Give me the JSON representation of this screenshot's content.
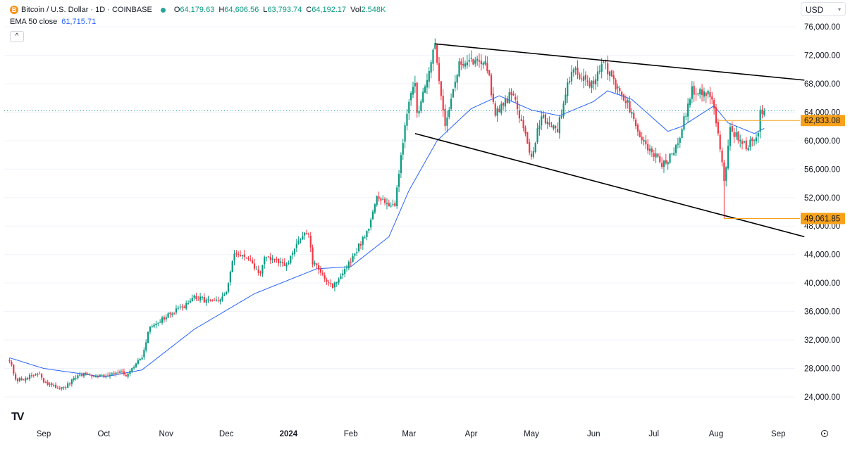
{
  "header": {
    "symbol_title": "Bitcoin / U.S. Dollar · 1D · COINBASE",
    "logo_letter": "B",
    "ohlc": [
      {
        "key": "O",
        "value": "64,179.63"
      },
      {
        "key": "H",
        "value": "64,606.56"
      },
      {
        "key": "L",
        "value": "63,793.74"
      },
      {
        "key": "C",
        "value": "64,192.17"
      },
      {
        "key": "Vol",
        "value": "2.548K"
      }
    ],
    "indicator_label": "EMA 50 close",
    "indicator_value": "61,715.71",
    "collapse_glyph": "^"
  },
  "currency_selector": {
    "value": "USD"
  },
  "logo": {
    "text": "TV"
  },
  "colors": {
    "up": "#089981",
    "down": "#f23645",
    "ema": "#2962ff",
    "tag": "#f7a21b",
    "trendline": "#000000"
  },
  "chart_data": {
    "type": "candlestick",
    "title": "Bitcoin / U.S. Dollar · 1D · COINBASE",
    "ylim": [
      22000,
      78000
    ],
    "y_ticks": [
      76000,
      72000,
      68000,
      64000,
      60000,
      56000,
      52000,
      48000,
      44000,
      40000,
      36000,
      32000,
      28000,
      24000
    ],
    "y_tick_labels": [
      "76,000.00",
      "72,000.00",
      "68,000.00",
      "64,000.00",
      "60,000.00",
      "56,000.00",
      "52,000.00",
      "48,000.00",
      "44,000.00",
      "40,000.00",
      "36,000.00",
      "32,000.00",
      "28,000.00",
      "24,000.00"
    ],
    "x_labels": [
      {
        "label": "Sep",
        "date": "2023-09-01",
        "bold": false
      },
      {
        "label": "Oct",
        "date": "2023-10-01",
        "bold": false
      },
      {
        "label": "Nov",
        "date": "2023-11-01",
        "bold": false
      },
      {
        "label": "Dec",
        "date": "2023-12-01",
        "bold": false
      },
      {
        "label": "2024",
        "date": "2024-01-01",
        "bold": true
      },
      {
        "label": "Feb",
        "date": "2024-02-01",
        "bold": false
      },
      {
        "label": "Mar",
        "date": "2024-03-01",
        "bold": false
      },
      {
        "label": "Apr",
        "date": "2024-04-01",
        "bold": false
      },
      {
        "label": "May",
        "date": "2024-05-01",
        "bold": false
      },
      {
        "label": "Jun",
        "date": "2024-06-01",
        "bold": false
      },
      {
        "label": "Jul",
        "date": "2024-07-01",
        "bold": false
      },
      {
        "label": "Aug",
        "date": "2024-08-01",
        "bold": false
      },
      {
        "label": "Sep",
        "date": "2024-09-01",
        "bold": false
      }
    ],
    "date_range": [
      "2023-08-15",
      "2024-08-25"
    ],
    "price_anchors": [
      [
        "2023-08-15",
        29300
      ],
      [
        "2023-08-18",
        26200
      ],
      [
        "2023-08-30",
        27300
      ],
      [
        "2023-09-01",
        25900
      ],
      [
        "2023-09-11",
        25150
      ],
      [
        "2023-09-19",
        27200
      ],
      [
        "2023-10-01",
        27000
      ],
      [
        "2023-10-09",
        27700
      ],
      [
        "2023-10-12",
        26700
      ],
      [
        "2023-10-20",
        29700
      ],
      [
        "2023-10-24",
        33900
      ],
      [
        "2023-11-09",
        36600
      ],
      [
        "2023-11-15",
        37900
      ],
      [
        "2023-11-27",
        37300
      ],
      [
        "2023-12-01",
        38700
      ],
      [
        "2023-12-05",
        44000
      ],
      [
        "2023-12-08",
        44200
      ],
      [
        "2023-12-18",
        41300
      ],
      [
        "2023-12-20",
        43800
      ],
      [
        "2023-12-31",
        42300
      ],
      [
        "2024-01-08",
        47000
      ],
      [
        "2024-01-11",
        46600
      ],
      [
        "2024-01-13",
        42800
      ],
      [
        "2024-01-23",
        39500
      ],
      [
        "2024-01-31",
        42600
      ],
      [
        "2024-02-09",
        47200
      ],
      [
        "2024-02-14",
        51800
      ],
      [
        "2024-02-23",
        51000
      ],
      [
        "2024-02-28",
        62500
      ],
      [
        "2024-03-04",
        68400
      ],
      [
        "2024-03-05",
        63800
      ],
      [
        "2024-03-14",
        73100
      ],
      [
        "2024-03-19",
        62400
      ],
      [
        "2024-03-26",
        70600
      ],
      [
        "2024-04-08",
        71600
      ],
      [
        "2024-04-13",
        64000
      ],
      [
        "2024-04-22",
        66800
      ],
      [
        "2024-05-01",
        57700
      ],
      [
        "2024-05-06",
        63500
      ],
      [
        "2024-05-14",
        61500
      ],
      [
        "2024-05-21",
        70200
      ],
      [
        "2024-06-01",
        67800
      ],
      [
        "2024-06-06",
        71100
      ],
      [
        "2024-06-13",
        67000
      ],
      [
        "2024-06-18",
        65200
      ],
      [
        "2024-06-24",
        60300
      ],
      [
        "2024-07-04",
        57000
      ],
      [
        "2024-07-05",
        56700
      ],
      [
        "2024-07-10",
        58000
      ],
      [
        "2024-07-14",
        60800
      ],
      [
        "2024-07-20",
        67100
      ],
      [
        "2024-07-29",
        66800
      ],
      [
        "2024-08-02",
        61400
      ],
      [
        "2024-08-05",
        54000
      ],
      [
        "2024-08-08",
        61700
      ],
      [
        "2024-08-16",
        59000
      ],
      [
        "2024-08-22",
        61200
      ],
      [
        "2024-08-23",
        64100
      ],
      [
        "2024-08-25",
        64192
      ]
    ],
    "ema50_anchors": [
      [
        "2023-08-15",
        29500
      ],
      [
        "2023-09-01",
        28000
      ],
      [
        "2023-10-01",
        26800
      ],
      [
        "2023-10-20",
        27800
      ],
      [
        "2023-11-15",
        33500
      ],
      [
        "2023-12-15",
        38500
      ],
      [
        "2024-01-15",
        42000
      ],
      [
        "2024-02-01",
        42300
      ],
      [
        "2024-02-20",
        46500
      ],
      [
        "2024-03-01",
        53000
      ],
      [
        "2024-03-15",
        60000
      ],
      [
        "2024-04-01",
        64500
      ],
      [
        "2024-04-15",
        66300
      ],
      [
        "2024-05-01",
        64300
      ],
      [
        "2024-05-15",
        63500
      ],
      [
        "2024-06-01",
        65500
      ],
      [
        "2024-06-08",
        67000
      ],
      [
        "2024-06-20",
        65800
      ],
      [
        "2024-07-08",
        61300
      ],
      [
        "2024-07-15",
        62000
      ],
      [
        "2024-07-31",
        64900
      ],
      [
        "2024-08-07",
        62500
      ],
      [
        "2024-08-20",
        61000
      ],
      [
        "2024-08-25",
        61715.71
      ]
    ],
    "trendlines": [
      {
        "name": "upper-trendline",
        "from": [
          "2024-03-14",
          73600
        ],
        "to": [
          "2024-09-14",
          68500
        ]
      },
      {
        "name": "lower-trendline",
        "from": [
          "2024-03-04",
          61000
        ],
        "to": [
          "2024-09-14",
          46500
        ]
      }
    ],
    "horizontal_levels": [
      {
        "name": "level-62833",
        "from_date": "2024-08-02",
        "value": 62833.08,
        "label": "62,833.08"
      },
      {
        "name": "level-49061",
        "from_date": "2024-08-05",
        "value": 49061.85,
        "label": "49,061.85"
      }
    ],
    "current_price": 64192.17
  }
}
